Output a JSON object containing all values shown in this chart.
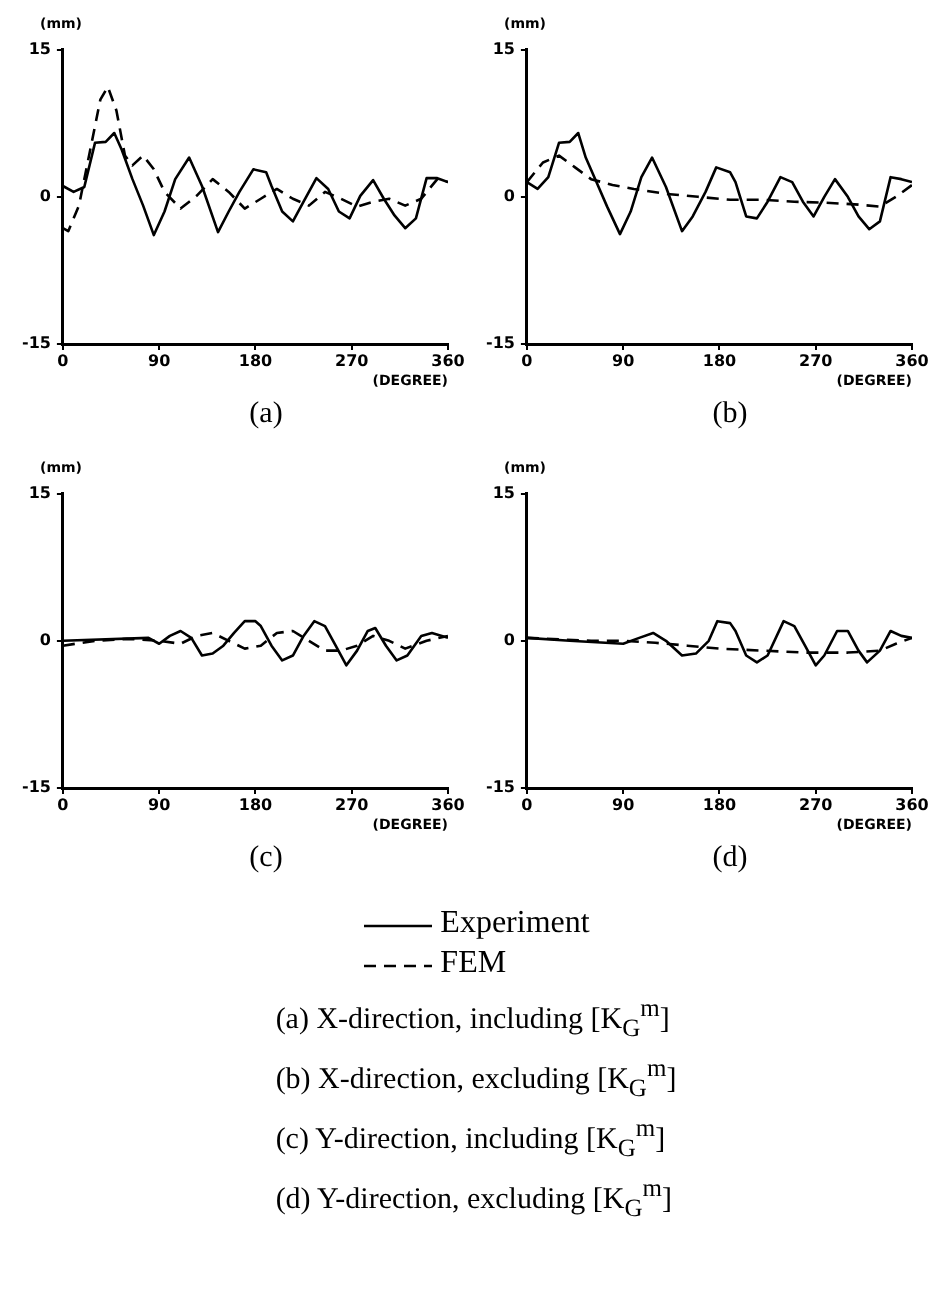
{
  "chart_data": [
    {
      "type": "line",
      "xlabel": "(DEGREE)",
      "ylabel": "(mm)",
      "xlim": [
        0,
        360
      ],
      "ylim": [
        -15,
        15
      ],
      "xticks": [
        0,
        90,
        180,
        270,
        360
      ],
      "yticks": [
        -15,
        0,
        15
      ],
      "marker": "none",
      "annotations": [
        "(a)"
      ],
      "series": [
        {
          "color": "#000000",
          "line_style": "solid",
          "x": [
            0,
            10,
            20,
            30,
            40,
            48,
            55,
            65,
            75,
            85,
            95,
            105,
            118,
            130,
            145,
            155,
            165,
            178,
            190,
            195,
            205,
            215,
            225,
            237,
            248,
            258,
            268,
            278,
            290,
            300,
            310,
            320,
            330,
            340,
            350,
            360
          ],
          "values": [
            1.1,
            0.5,
            1,
            5.5,
            5.6,
            6.5,
            4.8,
            1.8,
            -0.9,
            -3.9,
            -1.5,
            1.8,
            4,
            1.1,
            -3.6,
            -1.5,
            0.5,
            2.8,
            2.5,
            1.1,
            -1.5,
            -2.5,
            -0.5,
            1.9,
            0.8,
            -1.5,
            -2.2,
            0.1,
            1.7,
            -0.2,
            -1.9,
            -3.2,
            -2.2,
            1.9,
            1.9,
            1.5
          ]
        },
        {
          "color": "#000000",
          "line_style": "dashed",
          "x": [
            0,
            5,
            15,
            25,
            35,
            42,
            50,
            58,
            65,
            75,
            85,
            95,
            110,
            125,
            140,
            155,
            170,
            185,
            200,
            215,
            230,
            245,
            260,
            275,
            290,
            305,
            320,
            335,
            350,
            360
          ],
          "values": [
            -3.2,
            -3.5,
            -0.9,
            4.5,
            9.9,
            11.2,
            8.8,
            4.2,
            3.2,
            4.2,
            2.8,
            0.5,
            -1.2,
            0.1,
            1.8,
            0.5,
            -1.2,
            -0.2,
            0.8,
            -0.2,
            -0.9,
            0.5,
            -0.2,
            -1,
            -0.5,
            -0.2,
            -0.9,
            -0.2,
            1.8,
            1.5
          ]
        }
      ]
    },
    {
      "type": "line",
      "xlabel": "(DEGREE)",
      "ylabel": "(mm)",
      "xlim": [
        0,
        360
      ],
      "ylim": [
        -15,
        15
      ],
      "xticks": [
        0,
        90,
        180,
        270,
        360
      ],
      "yticks": [
        -15,
        0,
        15
      ],
      "marker": "none",
      "annotations": [
        "(b)"
      ],
      "series": [
        {
          "color": "#000000",
          "line_style": "solid",
          "x": [
            0,
            10,
            20,
            30,
            40,
            48,
            55,
            65,
            75,
            87,
            97,
            107,
            117,
            130,
            145,
            155,
            167,
            177,
            190,
            195,
            205,
            215,
            225,
            237,
            248,
            258,
            268,
            278,
            288,
            300,
            310,
            320,
            330,
            340,
            350,
            360
          ],
          "values": [
            1.5,
            0.8,
            2,
            5.5,
            5.6,
            6.5,
            4,
            1.5,
            -1,
            -3.8,
            -1.5,
            2,
            4,
            1,
            -3.5,
            -2,
            0.5,
            3,
            2.5,
            1.5,
            -2,
            -2.2,
            -0.5,
            2,
            1.5,
            -0.5,
            -2,
            0,
            1.8,
            0,
            -2,
            -3.3,
            -2.5,
            2,
            1.8,
            1.5
          ]
        },
        {
          "color": "#000000",
          "line_style": "dashed",
          "x": [
            0,
            15,
            30,
            45,
            60,
            80,
            100,
            130,
            160,
            190,
            220,
            250,
            280,
            310,
            330,
            345,
            360
          ],
          "values": [
            1.5,
            3.5,
            4.2,
            3,
            1.8,
            1.2,
            0.8,
            0.3,
            0,
            -0.3,
            -0.3,
            -0.5,
            -0.6,
            -0.8,
            -1,
            0,
            1.2
          ]
        }
      ]
    },
    {
      "type": "line",
      "xlabel": "(DEGREE)",
      "ylabel": "(mm)",
      "xlim": [
        0,
        360
      ],
      "ylim": [
        -15,
        15
      ],
      "xticks": [
        0,
        90,
        180,
        270,
        360
      ],
      "yticks": [
        -15,
        0,
        15
      ],
      "marker": "none",
      "annotations": [
        "(c)"
      ],
      "series": [
        {
          "color": "#000000",
          "line_style": "solid",
          "x": [
            0,
            80,
            90,
            100,
            110,
            120,
            130,
            140,
            150,
            160,
            170,
            180,
            185,
            195,
            205,
            215,
            225,
            235,
            245,
            255,
            265,
            275,
            285,
            292,
            302,
            312,
            322,
            335,
            345,
            360
          ],
          "values": [
            0,
            0.3,
            -0.3,
            0.5,
            1,
            0.3,
            -1.5,
            -1.3,
            -0.5,
            0.8,
            2,
            2,
            1.5,
            -0.5,
            -2,
            -1.5,
            0.5,
            2,
            1.5,
            -0.5,
            -2.5,
            -1,
            1,
            1.3,
            -0.5,
            -2,
            -1.5,
            0.5,
            0.8,
            0.3
          ]
        },
        {
          "color": "#000000",
          "line_style": "dashed",
          "x": [
            0,
            30,
            60,
            90,
            110,
            125,
            140,
            155,
            170,
            185,
            200,
            215,
            230,
            245,
            260,
            275,
            290,
            305,
            320,
            340,
            360
          ],
          "values": [
            -0.5,
            0,
            0.2,
            0,
            -0.3,
            0.5,
            0.8,
            0,
            -0.8,
            -0.5,
            0.8,
            1,
            0,
            -1,
            -1,
            -0.5,
            0.5,
            0,
            -0.8,
            0,
            0.5
          ]
        }
      ]
    },
    {
      "type": "line",
      "xlabel": "(DEGREE)",
      "ylabel": "(mm)",
      "xlim": [
        0,
        360
      ],
      "ylim": [
        -15,
        15
      ],
      "xticks": [
        0,
        90,
        180,
        270,
        360
      ],
      "yticks": [
        -15,
        0,
        15
      ],
      "marker": "none",
      "legend": "bottom",
      "annotations": [
        "(d)",
        "(a) X-direction, including [K$_{G}$$^{m}$]",
        "(b) X-direction, excluding [K$_{G}$$^{m}$]",
        "(c) Y-direction, including [K$_{G}$$^{m}$]",
        "(d) Y-direction, excluding [K$_{G}$$^{m}$]"
      ],
      "series": [
        {
          "name": "Experiment",
          "color": "#000000",
          "line_style": "solid",
          "x": [
            0,
            40,
            90,
            105,
            118,
            130,
            145,
            158,
            170,
            178,
            190,
            195,
            205,
            215,
            225,
            240,
            250,
            260,
            270,
            278,
            290,
            300,
            310,
            318,
            330,
            340,
            350,
            360
          ],
          "values": [
            0.3,
            0,
            -0.3,
            0.3,
            0.8,
            0,
            -1.5,
            -1.3,
            0,
            2,
            1.8,
            1,
            -1.5,
            -2.2,
            -1.5,
            2,
            1.5,
            -0.5,
            -2.5,
            -1.5,
            1,
            1,
            -1,
            -2.2,
            -1,
            1,
            0.5,
            0.3
          ]
        },
        {
          "name": "FEM",
          "color": "#000000",
          "line_style": "dashed",
          "x": [
            0,
            60,
            90,
            120,
            150,
            180,
            220,
            260,
            300,
            330,
            345,
            360
          ],
          "values": [
            0.3,
            0,
            0,
            -0.2,
            -0.5,
            -0.8,
            -1,
            -1.2,
            -1.2,
            -1,
            -0.3,
            0.3
          ]
        }
      ]
    }
  ]
}
